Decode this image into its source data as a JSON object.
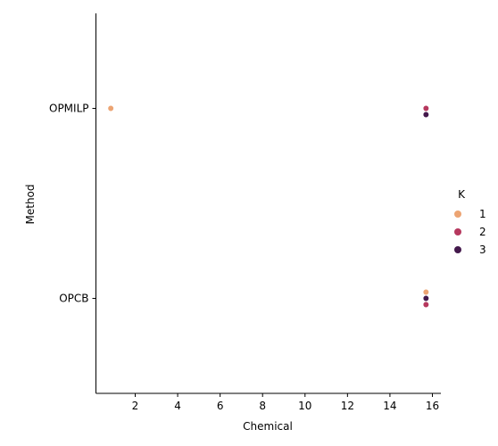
{
  "chart_data": {
    "type": "scatter",
    "title": "",
    "xlabel": "Chemical",
    "ylabel": "Method",
    "xlim": [
      0.15,
      16.4
    ],
    "x_ticks": [
      2,
      4,
      6,
      8,
      10,
      12,
      14,
      16
    ],
    "y_categories": [
      "OPMILP",
      "OPCB"
    ],
    "grid": false,
    "legend": {
      "title": "K",
      "placement": "right",
      "entries": [
        {
          "label": "1",
          "color": "#eca473"
        },
        {
          "label": "2",
          "color": "#b6385e"
        },
        {
          "label": "3",
          "color": "#44194c"
        }
      ]
    },
    "series": [
      {
        "name": "1",
        "color": "#eca473",
        "points": [
          {
            "x": 0.85,
            "y": "OPMILP"
          },
          {
            "x": 15.7,
            "y": "OPCB"
          }
        ]
      },
      {
        "name": "2",
        "color": "#b6385e",
        "points": [
          {
            "x": 15.7,
            "y": "OPMILP"
          },
          {
            "x": 15.7,
            "y": "OPCB"
          }
        ]
      },
      {
        "name": "3",
        "color": "#44194c",
        "points": [
          {
            "x": 15.7,
            "y": "OPMILP"
          },
          {
            "x": 15.7,
            "y": "OPCB"
          }
        ]
      }
    ]
  }
}
